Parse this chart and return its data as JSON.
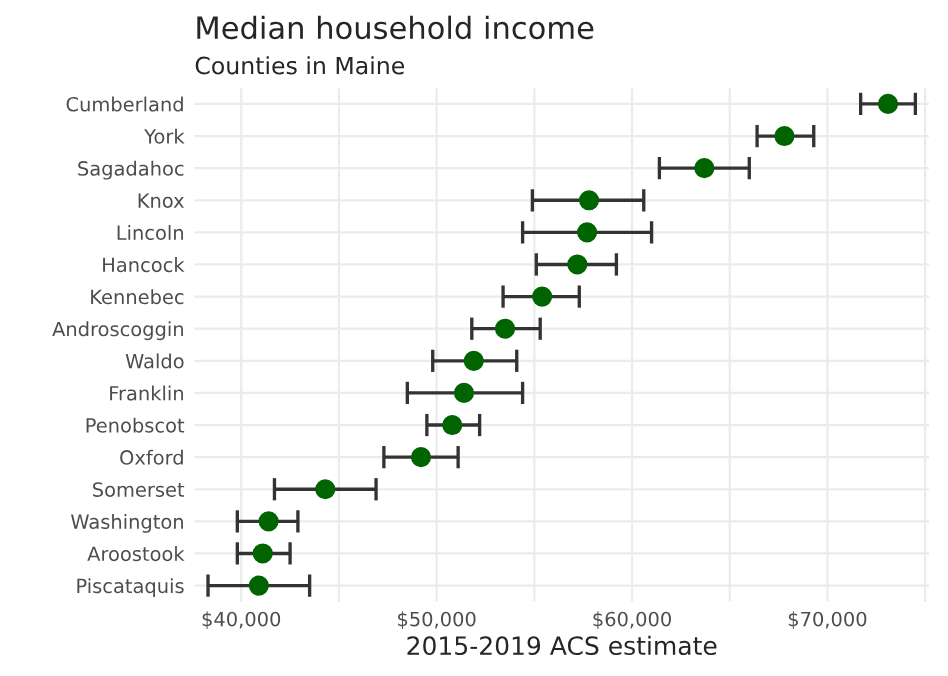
{
  "chart_data": {
    "type": "scatter",
    "title": "Median household income",
    "subtitle": "Counties in Maine",
    "xlabel": "2015-2019 ACS estimate",
    "orientation": "horizontal",
    "categories": [
      "Cumberland",
      "York",
      "Sagadahoc",
      "Knox",
      "Lincoln",
      "Hancock",
      "Kennebec",
      "Androscoggin",
      "Waldo",
      "Franklin",
      "Penobscot",
      "Oxford",
      "Somerset",
      "Washington",
      "Aroostook",
      "Piscataquis"
    ],
    "values": [
      73100,
      67800,
      63700,
      57800,
      57700,
      57200,
      55400,
      53500,
      51900,
      51400,
      50800,
      49200,
      44300,
      41400,
      41100,
      40900
    ],
    "errors": [
      [
        71700,
        74500
      ],
      [
        66400,
        69300
      ],
      [
        61400,
        66000
      ],
      [
        54900,
        60600
      ],
      [
        54400,
        61000
      ],
      [
        55100,
        59200
      ],
      [
        53400,
        57300
      ],
      [
        51800,
        55300
      ],
      [
        49800,
        54100
      ],
      [
        48500,
        54400
      ],
      [
        49500,
        52200
      ],
      [
        47300,
        51100
      ],
      [
        41700,
        46900
      ],
      [
        39800,
        42900
      ],
      [
        39800,
        42500
      ],
      [
        38300,
        43500
      ]
    ],
    "color": "#006400",
    "marker": "circle",
    "grid": true,
    "xlim": [
      37600,
      75200
    ],
    "xticks": [
      {
        "value": 40000,
        "label": "$40,000"
      },
      {
        "value": 45000,
        "label": null
      },
      {
        "value": 50000,
        "label": "$50,000"
      },
      {
        "value": 55000,
        "label": null
      },
      {
        "value": 60000,
        "label": "$60,000"
      },
      {
        "value": 65000,
        "label": null
      },
      {
        "value": 70000,
        "label": "$70,000"
      },
      {
        "value": 75000,
        "label": null
      }
    ]
  }
}
